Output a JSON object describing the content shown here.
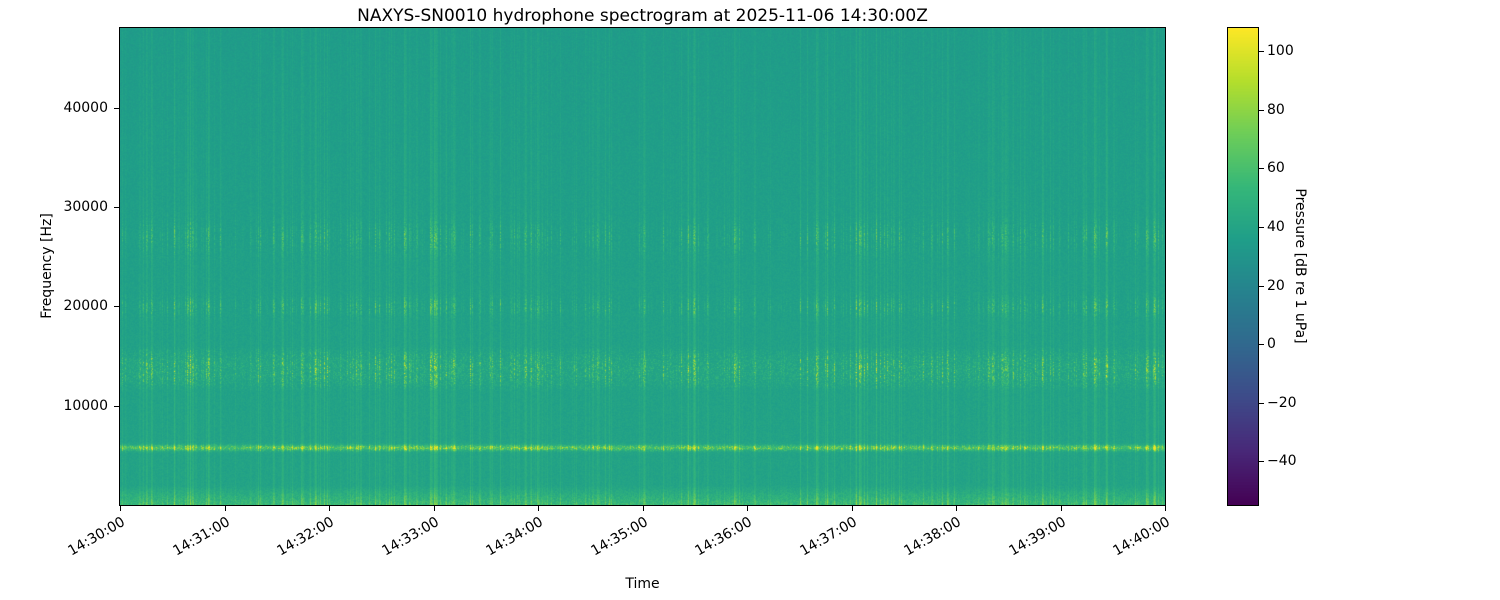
{
  "chart_data": {
    "type": "heatmap",
    "subtype": "spectrogram",
    "title": "NAXYS-SN0010 hydrophone spectrogram at 2025-11-06 14:30:00Z",
    "xlabel": "Time",
    "ylabel": "Frequency [Hz]",
    "x_ticks": [
      "14:30:00",
      "14:31:00",
      "14:32:00",
      "14:33:00",
      "14:34:00",
      "14:35:00",
      "14:36:00",
      "14:37:00",
      "14:38:00",
      "14:39:00",
      "14:40:00"
    ],
    "x_tick_rotation_deg": -30,
    "x_span_seconds": 600,
    "y_ticks": [
      10000,
      20000,
      30000,
      40000
    ],
    "y_tick_labels": [
      "10000",
      "20000",
      "30000",
      "40000"
    ],
    "ylim": [
      0,
      48000
    ],
    "grid": false,
    "colorbar": {
      "label": "Pressure [dB re 1 uPa]",
      "cmap": "viridis",
      "vmin": -55,
      "vmax": 108,
      "ticks": [
        100,
        80,
        60,
        40,
        20,
        0,
        -20,
        -40
      ],
      "tick_labels": [
        "100",
        "80",
        "60",
        "40",
        "20",
        "0",
        "−20",
        "−40"
      ]
    },
    "features": [
      {
        "kind": "background",
        "description": "uniform teal-green mid-level noise floor across all frequencies"
      },
      {
        "kind": "tonal_band",
        "center_hz": 5800,
        "width_hz": 700,
        "description": "bright near-continuous intermittent tone, brightest feature (yellow dashes)"
      },
      {
        "kind": "speckle_band",
        "range_hz": [
          11500,
          16000
        ],
        "description": "dense speckled energy with short bright dashes"
      },
      {
        "kind": "band",
        "center_hz": 20000,
        "description": "scattered transient dashes"
      },
      {
        "kind": "band",
        "center_hz": 27000,
        "description": "scattered transient dashes"
      },
      {
        "kind": "low_band",
        "range_hz": [
          0,
          2000
        ],
        "description": "brighter speckled energy along bottom edge"
      },
      {
        "kind": "transients",
        "description": "broadband vertical click streaks throughout, denser near 14:38-14:40"
      }
    ],
    "render": {
      "seed": 1337,
      "freq_max_hz": 48000,
      "base_norm": 0.578,
      "base_tilt": 0.03,
      "noise_amp": 0.035,
      "streak_probability": 0.07,
      "streak_broadband_gain": 0.09,
      "micro_streak_gain": 0.6,
      "cluster_grid": 34,
      "bands": {
        "low_cut_hz": 2000,
        "low_gain": 0.05,
        "low_noise": 0.08,
        "low_streak": 0.12,
        "tone_hz": 5800,
        "tone_sigma_hz": 260,
        "tone_base": 0.1,
        "tone_streak": 0.55,
        "tone_speckle": 0.2,
        "mid_lo_hz": 11500,
        "mid_hi_hz": 16000,
        "mid_base": 0.012,
        "mid_streak": 0.38,
        "mid_speckle": 0.06,
        "b20_hz": 20000,
        "b20_sigma": 900,
        "b20_streak": 0.3,
        "b27_hz": 27000,
        "b27_sigma": 1500,
        "b27_streak": 0.26
      }
    }
  }
}
